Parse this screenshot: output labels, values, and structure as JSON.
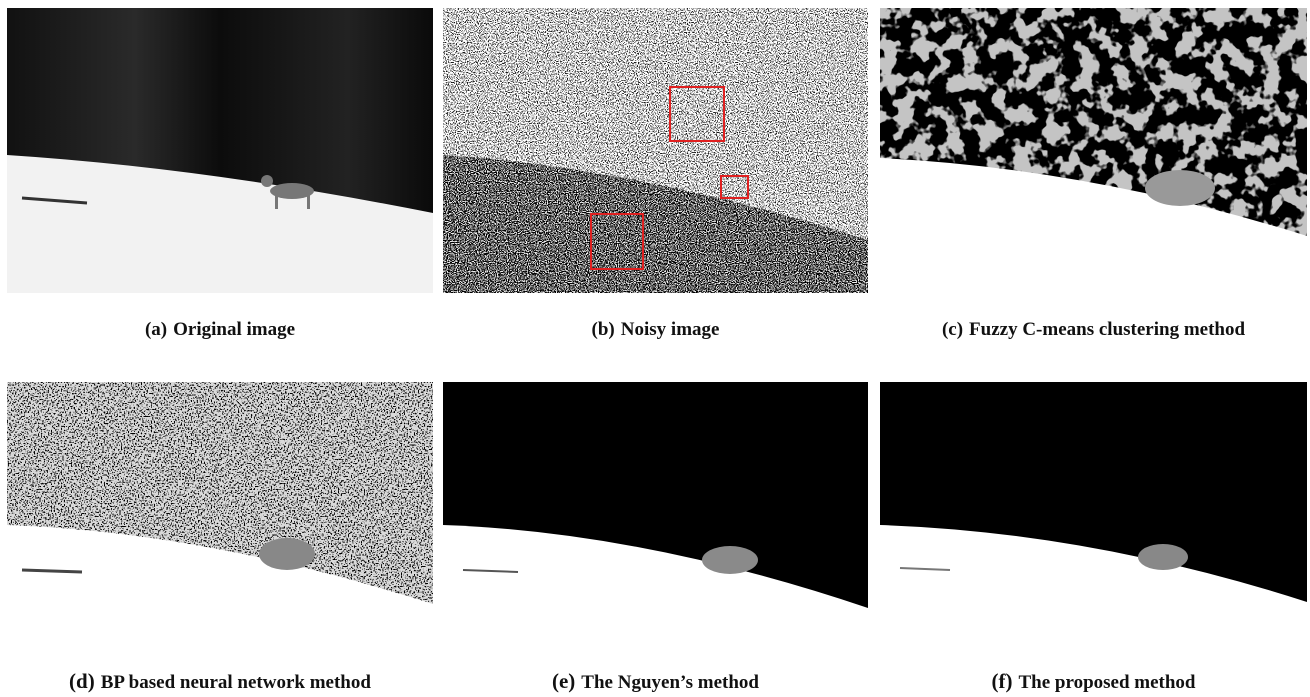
{
  "figure": {
    "panels": [
      {
        "label": "(a)",
        "caption": "Original image"
      },
      {
        "label": "(b)",
        "caption": "Noisy image"
      },
      {
        "label": "(c)",
        "caption": "Fuzzy C-means clustering method"
      },
      {
        "label": "(d)",
        "caption": "BP based neural network method"
      },
      {
        "label": "(e)",
        "caption": "The Nguyen’s method"
      },
      {
        "label": "(f)",
        "caption": "The proposed method"
      }
    ]
  }
}
